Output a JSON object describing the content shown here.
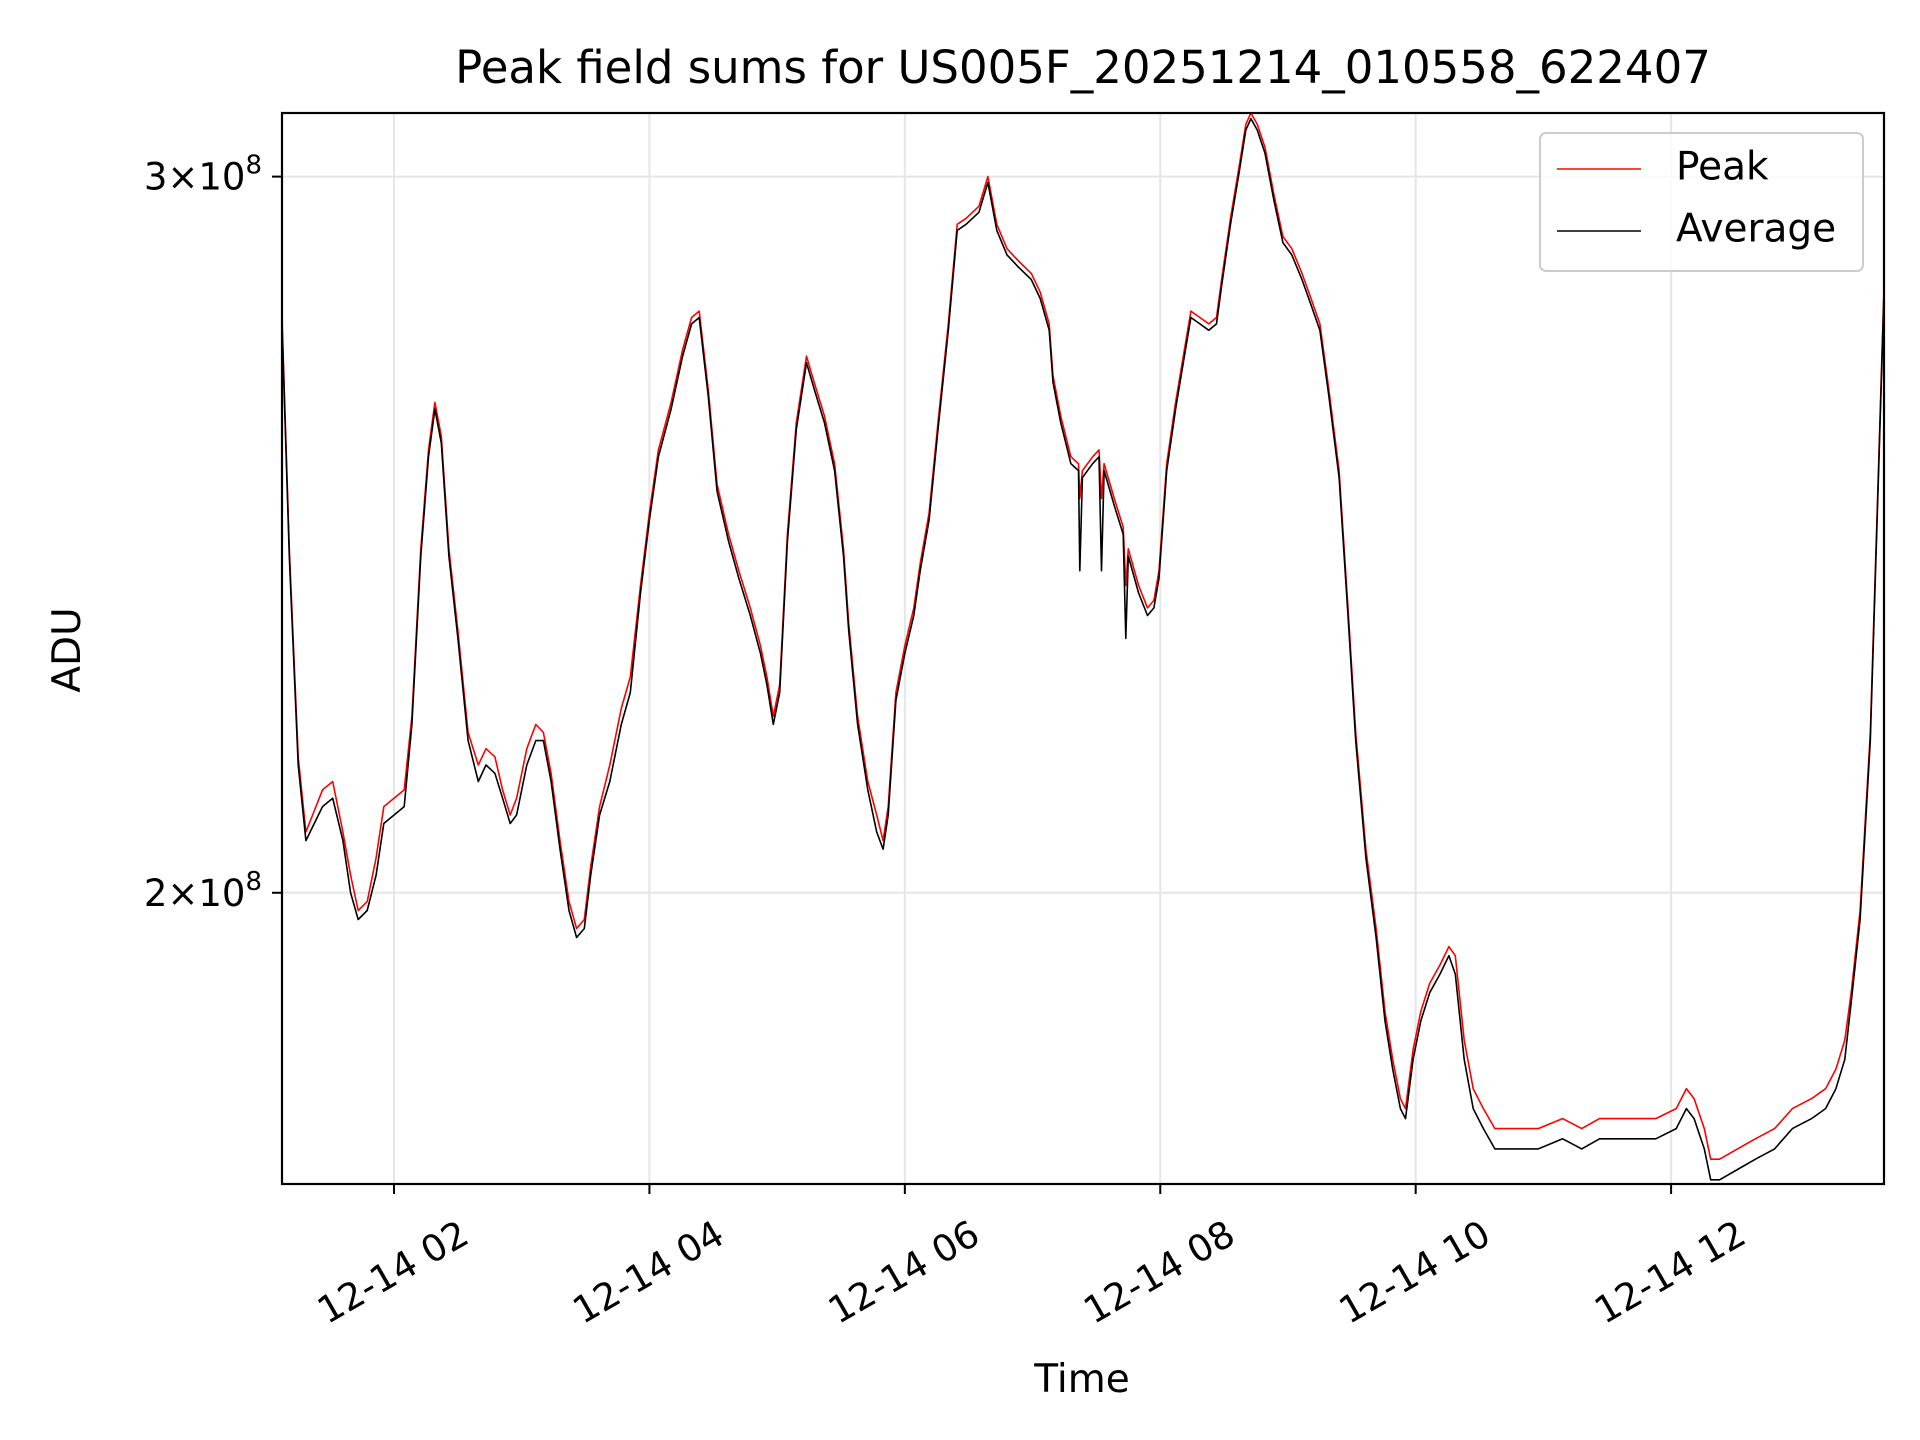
{
  "chart_data": {
    "type": "line",
    "title": "Peak field sums for US005F_20251214_010558_622407",
    "xlabel": "Time",
    "ylabel": "ADU",
    "x_units": "hours since 12-14 00:00",
    "y_units": "1e8 ADU",
    "y_scale": "log",
    "xlim": [
      1.123,
      13.667
    ],
    "ylim": [
      1.696,
      3.11
    ],
    "grid": true,
    "legend_placement": "top-right",
    "x_ticks": [
      {
        "value": 2,
        "label": "12-14 02"
      },
      {
        "value": 4,
        "label": "12-14 04"
      },
      {
        "value": 6,
        "label": "12-14 06"
      },
      {
        "value": 8,
        "label": "12-14 08"
      },
      {
        "value": 10,
        "label": "12-14 10"
      },
      {
        "value": 12,
        "label": "12-14 12"
      }
    ],
    "y_ticks": [
      {
        "value": 2,
        "mantissa": "2",
        "times": "×10",
        "exp": "8"
      },
      {
        "value": 3,
        "mantissa": "3",
        "times": "×10",
        "exp": "8"
      }
    ],
    "x": [
      1.12,
      1.18,
      1.25,
      1.31,
      1.44,
      1.52,
      1.6,
      1.66,
      1.72,
      1.79,
      1.86,
      1.92,
      2.08,
      2.14,
      2.21,
      2.27,
      2.32,
      2.37,
      2.43,
      2.5,
      2.58,
      2.66,
      2.72,
      2.79,
      2.85,
      2.91,
      2.96,
      3.04,
      3.11,
      3.17,
      3.23,
      3.3,
      3.37,
      3.43,
      3.49,
      3.54,
      3.61,
      3.69,
      3.78,
      3.85,
      3.93,
      4.0,
      4.07,
      4.17,
      4.26,
      4.33,
      4.39,
      4.46,
      4.53,
      4.62,
      4.7,
      4.79,
      4.87,
      4.92,
      4.97,
      5.02,
      5.08,
      5.15,
      5.23,
      5.29,
      5.37,
      5.45,
      5.52,
      5.56,
      5.63,
      5.71,
      5.78,
      5.83,
      5.87,
      5.93,
      6.0,
      6.07,
      6.12,
      6.19,
      6.26,
      6.34,
      6.41,
      6.48,
      6.58,
      6.65,
      6.72,
      6.8,
      6.89,
      6.99,
      7.06,
      7.13,
      7.16,
      7.22,
      7.3,
      7.36,
      7.37,
      7.39,
      7.47,
      7.52,
      7.54,
      7.56,
      7.64,
      7.71,
      7.73,
      7.75,
      7.83,
      7.9,
      7.95,
      7.99,
      8.05,
      8.12,
      8.18,
      8.24,
      8.31,
      8.38,
      8.44,
      8.48,
      8.55,
      8.62,
      8.67,
      8.71,
      8.76,
      8.82,
      8.89,
      8.96,
      9.03,
      9.11,
      9.18,
      9.25,
      9.32,
      9.4,
      9.47,
      9.53,
      9.61,
      9.69,
      9.76,
      9.82,
      9.88,
      9.92,
      9.98,
      10.04,
      10.11,
      10.19,
      10.26,
      10.31,
      10.38,
      10.45,
      10.53,
      10.62,
      10.77,
      10.96,
      11.15,
      11.3,
      11.44,
      11.73,
      11.88,
      12.04,
      12.12,
      12.18,
      12.26,
      12.31,
      12.38,
      12.52,
      12.66,
      12.81,
      12.95,
      13.1,
      13.21,
      13.29,
      13.36,
      13.41,
      13.48,
      13.56,
      13.62,
      13.68
    ],
    "series": [
      {
        "name": "Peak",
        "color": "#ff0000",
        "values": [
          2.79,
          2.43,
          2.16,
          2.07,
          2.12,
          2.13,
          2.07,
          2.02,
          1.98,
          1.99,
          2.04,
          2.1,
          2.12,
          2.21,
          2.43,
          2.57,
          2.64,
          2.59,
          2.43,
          2.32,
          2.19,
          2.15,
          2.17,
          2.16,
          2.12,
          2.09,
          2.11,
          2.17,
          2.2,
          2.19,
          2.14,
          2.06,
          1.99,
          1.96,
          1.97,
          2.03,
          2.1,
          2.15,
          2.22,
          2.26,
          2.38,
          2.48,
          2.57,
          2.64,
          2.72,
          2.77,
          2.78,
          2.66,
          2.52,
          2.45,
          2.4,
          2.35,
          2.3,
          2.26,
          2.21,
          2.25,
          2.45,
          2.61,
          2.71,
          2.67,
          2.62,
          2.55,
          2.43,
          2.33,
          2.21,
          2.13,
          2.09,
          2.06,
          2.1,
          2.24,
          2.3,
          2.35,
          2.41,
          2.48,
          2.61,
          2.76,
          2.92,
          2.93,
          2.95,
          3.0,
          2.92,
          2.88,
          2.86,
          2.84,
          2.81,
          2.76,
          2.68,
          2.62,
          2.56,
          2.55,
          2.5,
          2.54,
          2.56,
          2.57,
          2.5,
          2.55,
          2.5,
          2.46,
          2.38,
          2.43,
          2.38,
          2.35,
          2.36,
          2.4,
          2.55,
          2.64,
          2.71,
          2.78,
          2.77,
          2.76,
          2.77,
          2.83,
          2.93,
          3.02,
          3.09,
          3.11,
          3.09,
          3.05,
          2.97,
          2.9,
          2.88,
          2.84,
          2.8,
          2.76,
          2.66,
          2.54,
          2.35,
          2.19,
          2.05,
          1.96,
          1.87,
          1.82,
          1.78,
          1.77,
          1.83,
          1.87,
          1.9,
          1.92,
          1.94,
          1.93,
          1.84,
          1.79,
          1.77,
          1.75,
          1.75,
          1.75,
          1.76,
          1.75,
          1.76,
          1.76,
          1.76,
          1.77,
          1.79,
          1.78,
          1.75,
          1.72,
          1.72,
          1.73,
          1.74,
          1.75,
          1.77,
          1.78,
          1.79,
          1.81,
          1.84,
          1.89,
          1.98,
          2.19,
          2.52,
          2.91
        ]
      },
      {
        "name": "Average",
        "color": "#000000",
        "values": [
          2.78,
          2.42,
          2.15,
          2.06,
          2.1,
          2.11,
          2.06,
          2.0,
          1.97,
          1.98,
          2.02,
          2.08,
          2.1,
          2.2,
          2.42,
          2.56,
          2.63,
          2.58,
          2.42,
          2.31,
          2.18,
          2.13,
          2.15,
          2.14,
          2.11,
          2.08,
          2.09,
          2.15,
          2.18,
          2.18,
          2.13,
          2.05,
          1.98,
          1.95,
          1.96,
          2.02,
          2.09,
          2.13,
          2.2,
          2.24,
          2.37,
          2.47,
          2.56,
          2.63,
          2.71,
          2.76,
          2.77,
          2.65,
          2.51,
          2.44,
          2.39,
          2.34,
          2.29,
          2.25,
          2.2,
          2.24,
          2.44,
          2.6,
          2.7,
          2.66,
          2.61,
          2.54,
          2.42,
          2.32,
          2.2,
          2.12,
          2.07,
          2.05,
          2.09,
          2.23,
          2.29,
          2.34,
          2.4,
          2.47,
          2.6,
          2.75,
          2.91,
          2.92,
          2.94,
          2.99,
          2.91,
          2.87,
          2.85,
          2.83,
          2.8,
          2.75,
          2.67,
          2.61,
          2.55,
          2.54,
          2.4,
          2.53,
          2.55,
          2.56,
          2.4,
          2.54,
          2.49,
          2.45,
          2.31,
          2.42,
          2.37,
          2.34,
          2.35,
          2.39,
          2.54,
          2.63,
          2.7,
          2.77,
          2.76,
          2.75,
          2.76,
          2.82,
          2.92,
          3.01,
          3.08,
          3.1,
          3.08,
          3.04,
          2.96,
          2.89,
          2.87,
          2.83,
          2.79,
          2.75,
          2.65,
          2.53,
          2.34,
          2.18,
          2.04,
          1.95,
          1.86,
          1.81,
          1.77,
          1.76,
          1.82,
          1.86,
          1.89,
          1.91,
          1.93,
          1.91,
          1.82,
          1.77,
          1.75,
          1.73,
          1.73,
          1.73,
          1.74,
          1.73,
          1.74,
          1.74,
          1.74,
          1.75,
          1.77,
          1.76,
          1.73,
          1.7,
          1.7,
          1.71,
          1.72,
          1.73,
          1.75,
          1.76,
          1.77,
          1.79,
          1.82,
          1.88,
          1.97,
          2.18,
          2.51,
          2.9
        ]
      }
    ]
  }
}
